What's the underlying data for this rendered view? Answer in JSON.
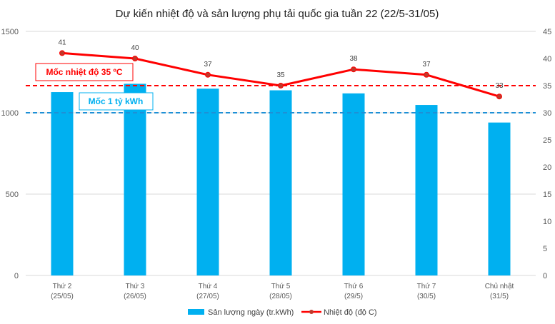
{
  "chart_data": {
    "type": "bar",
    "title": "Dự kiến nhiệt độ và sản lượng phụ tải quốc gia tuần 22 (22/5-31/05)",
    "categories": [
      [
        "Thứ 2",
        "(25/05)"
      ],
      [
        "Thứ 3",
        "(26/05)"
      ],
      [
        "Thứ 4",
        "(27/05)"
      ],
      [
        "Thứ 5",
        "(28/05)"
      ],
      [
        "Thứ 6",
        "(29/5)"
      ],
      [
        "Thứ 7",
        "(30/5)"
      ],
      [
        "Chủ nhật",
        "(31/5)"
      ]
    ],
    "series": [
      {
        "name": "Sản lượng ngày (tr.kWh)",
        "type": "bar",
        "axis": "left",
        "color": "#00b0f0",
        "values": [
          1127,
          1178,
          1148,
          1138,
          1119,
          1048,
          940
        ]
      },
      {
        "name": "Nhiệt độ (độ C)",
        "type": "line",
        "axis": "right",
        "color": "#ff0000",
        "marker_color": "#c0392b",
        "values": [
          41,
          40,
          37,
          35,
          38,
          37,
          33
        ]
      }
    ],
    "y_left": {
      "min": 0,
      "max": 1500,
      "ticks": [
        0,
        500,
        1000,
        1500
      ]
    },
    "y_right": {
      "min": 0,
      "max": 45,
      "ticks": [
        0,
        5,
        10,
        15,
        20,
        25,
        30,
        35,
        40,
        45
      ]
    },
    "reference_lines": [
      {
        "label": "Mốc nhiệt độ 35 ºC",
        "axis": "right",
        "value": 35,
        "color": "#ff0000",
        "style": "dashed"
      },
      {
        "label": "Mốc 1 tỷ kWh",
        "axis": "left",
        "value": 1000,
        "color": "#1e90d6",
        "style": "dashed"
      }
    ],
    "gridlines": true,
    "legend_position": "bottom"
  }
}
